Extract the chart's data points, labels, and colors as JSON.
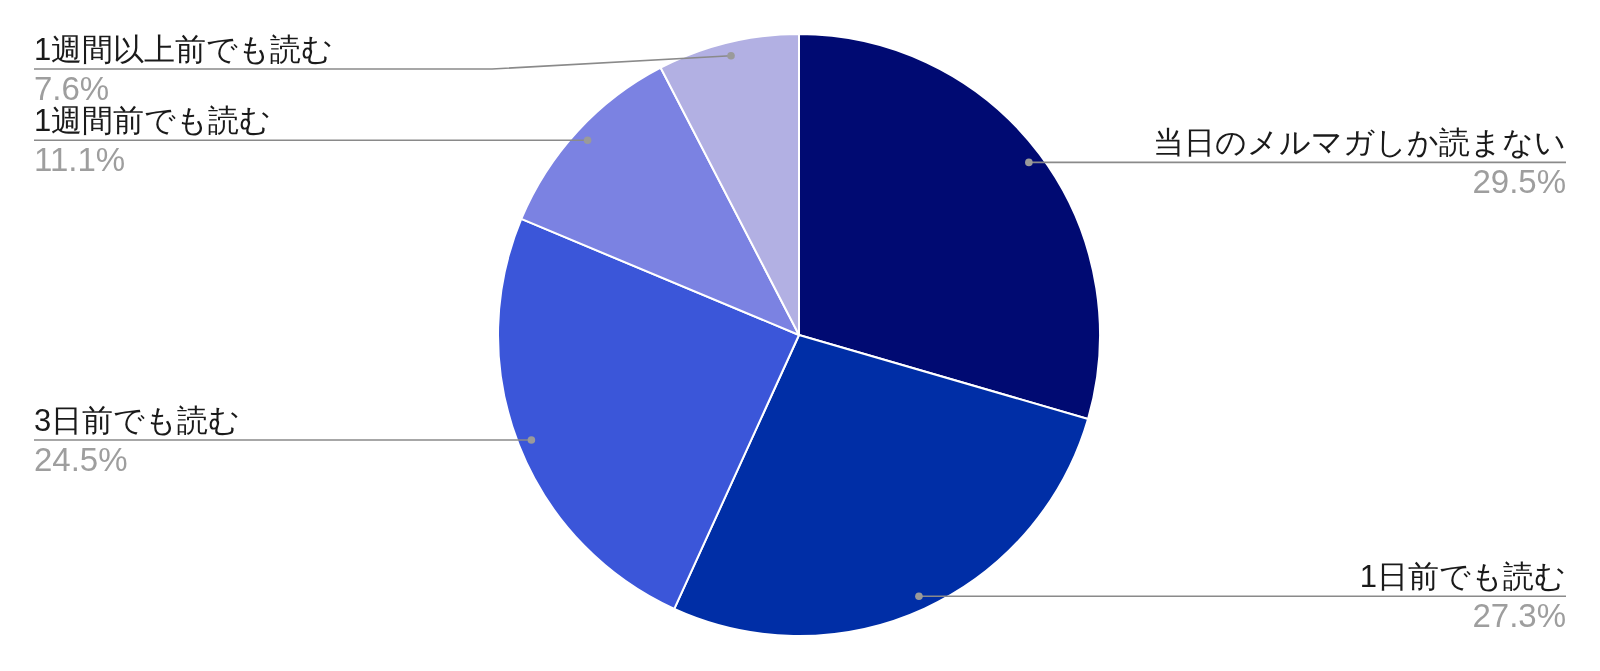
{
  "chart_data": {
    "type": "pie",
    "categories": [
      "当日のメルマガしか読まない",
      "1日前でも読む",
      "3日前でも読む",
      "1週間前でも読む",
      "1週間以上前でも読む"
    ],
    "values": [
      29.5,
      27.3,
      24.5,
      11.1,
      7.6
    ],
    "value_labels": [
      "29.5%",
      "27.3%",
      "24.5%",
      "11.1%",
      "7.6%"
    ],
    "colors": [
      "#000a72",
      "#002ea6",
      "#3b56d9",
      "#7b82e2",
      "#b2b0e3"
    ]
  }
}
